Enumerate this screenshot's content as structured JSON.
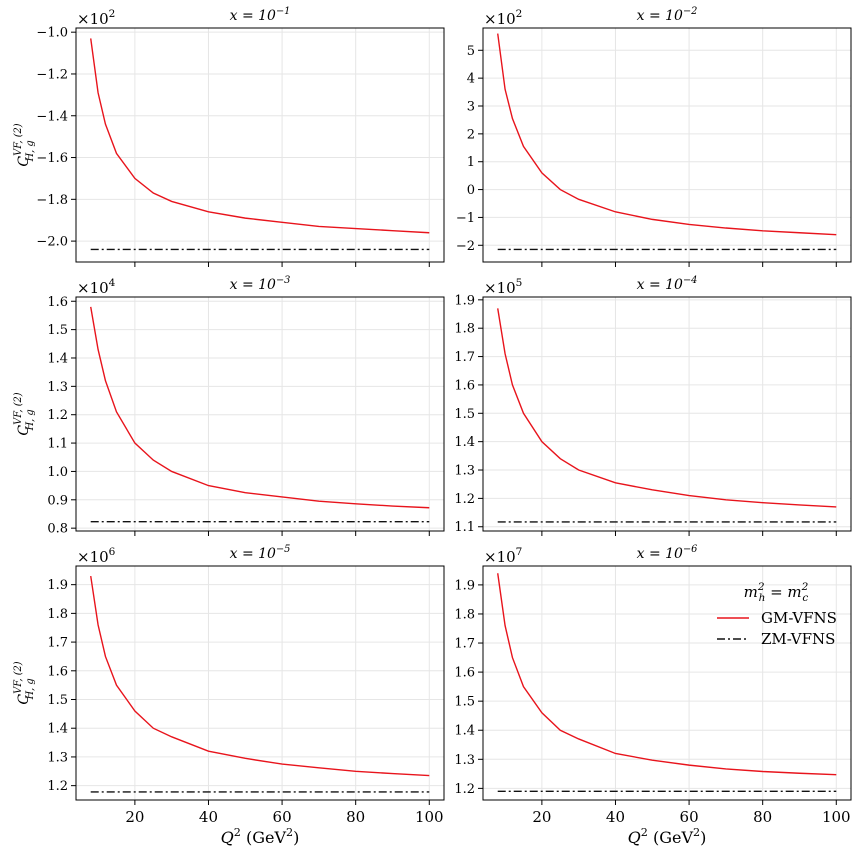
{
  "legend": {
    "title_main": "m",
    "title_sub": "h",
    "title_sup": "2",
    "title_rel": " = m",
    "title_sub2": "c",
    "title_sup2": "2",
    "items": [
      {
        "label": "GM-VFNS",
        "color": "#e8141c",
        "dash": "solid"
      },
      {
        "label": "ZM-VFNS",
        "color": "#111111",
        "dash": "dashdot"
      }
    ]
  },
  "xlabel": {
    "main": "Q",
    "sup": "2",
    "unit_open": " (GeV",
    "unit_sup": "2",
    "unit_close": ")"
  },
  "ylabel": {
    "main": "C",
    "sup": "VF, (2)",
    "sub": "H, g"
  },
  "chart_data": [
    {
      "type": "line",
      "title": {
        "prefix": "x = 10",
        "exp": "−1"
      },
      "multiplier": {
        "base": "×10",
        "exp": "2"
      },
      "xlim": [
        4,
        104
      ],
      "ylim": [
        -2.1,
        -0.98
      ],
      "xticks": [
        20,
        40,
        60,
        80,
        100
      ],
      "yticks": [
        -2.0,
        -1.8,
        -1.6,
        -1.4,
        -1.2,
        -1.0
      ],
      "ytick_labels": [
        "−2.0",
        "−1.8",
        "−1.6",
        "−1.4",
        "−1.2",
        "−1.0"
      ],
      "series": [
        {
          "name": "GM-VFNS",
          "x": [
            8,
            10,
            12,
            15,
            20,
            25,
            30,
            40,
            50,
            60,
            70,
            80,
            90,
            100
          ],
          "values": [
            -1.03,
            -1.29,
            -1.44,
            -1.58,
            -1.7,
            -1.77,
            -1.81,
            -1.86,
            -1.89,
            -1.91,
            -1.93,
            -1.94,
            -1.95,
            -1.96
          ]
        },
        {
          "name": "ZM-VFNS",
          "x": [
            8,
            100
          ],
          "values": [
            -2.04,
            -2.04
          ]
        }
      ],
      "grid": true
    },
    {
      "type": "line",
      "title": {
        "prefix": "x = 10",
        "exp": "−2"
      },
      "multiplier": {
        "base": "×10",
        "exp": "2"
      },
      "xlim": [
        4,
        104
      ],
      "ylim": [
        -2.6,
        5.8
      ],
      "xticks": [
        20,
        40,
        60,
        80,
        100
      ],
      "yticks": [
        -2,
        -1,
        0,
        1,
        2,
        3,
        4,
        5
      ],
      "ytick_labels": [
        "−2",
        "−1",
        "0",
        "1",
        "2",
        "3",
        "4",
        "5"
      ],
      "series": [
        {
          "name": "GM-VFNS",
          "x": [
            8,
            10,
            12,
            15,
            20,
            25,
            30,
            40,
            50,
            60,
            70,
            80,
            90,
            100
          ],
          "values": [
            5.6,
            3.6,
            2.55,
            1.55,
            0.6,
            0.0,
            -0.35,
            -0.8,
            -1.07,
            -1.25,
            -1.38,
            -1.48,
            -1.55,
            -1.62
          ]
        },
        {
          "name": "ZM-VFNS",
          "x": [
            8,
            100
          ],
          "values": [
            -2.15,
            -2.15
          ]
        }
      ],
      "grid": true
    },
    {
      "type": "line",
      "title": {
        "prefix": "x = 10",
        "exp": "−3"
      },
      "multiplier": {
        "base": "×10",
        "exp": "4"
      },
      "xlim": [
        4,
        104
      ],
      "ylim": [
        0.79,
        1.615
      ],
      "xticks": [
        20,
        40,
        60,
        80,
        100
      ],
      "yticks": [
        0.8,
        0.9,
        1.0,
        1.1,
        1.2,
        1.3,
        1.4,
        1.5,
        1.6
      ],
      "ytick_labels": [
        "0.8",
        "0.9",
        "1.0",
        "1.1",
        "1.2",
        "1.3",
        "1.4",
        "1.5",
        "1.6"
      ],
      "series": [
        {
          "name": "GM-VFNS",
          "x": [
            8,
            10,
            12,
            15,
            20,
            25,
            30,
            40,
            50,
            60,
            70,
            80,
            90,
            100
          ],
          "values": [
            1.58,
            1.43,
            1.32,
            1.21,
            1.1,
            1.04,
            1.0,
            0.95,
            0.925,
            0.91,
            0.895,
            0.886,
            0.878,
            0.872
          ]
        },
        {
          "name": "ZM-VFNS",
          "x": [
            8,
            100
          ],
          "values": [
            0.823,
            0.823
          ]
        }
      ],
      "grid": true
    },
    {
      "type": "line",
      "title": {
        "prefix": "x = 10",
        "exp": "−4"
      },
      "multiplier": {
        "base": "×10",
        "exp": "5"
      },
      "xlim": [
        4,
        104
      ],
      "ylim": [
        1.085,
        1.91
      ],
      "xticks": [
        20,
        40,
        60,
        80,
        100
      ],
      "yticks": [
        1.1,
        1.2,
        1.3,
        1.4,
        1.5,
        1.6,
        1.7,
        1.8,
        1.9
      ],
      "ytick_labels": [
        "1.1",
        "1.2",
        "1.3",
        "1.4",
        "1.5",
        "1.6",
        "1.7",
        "1.8",
        "1.9"
      ],
      "series": [
        {
          "name": "GM-VFNS",
          "x": [
            8,
            10,
            12,
            15,
            20,
            25,
            30,
            40,
            50,
            60,
            70,
            80,
            90,
            100
          ],
          "values": [
            1.87,
            1.71,
            1.6,
            1.5,
            1.4,
            1.34,
            1.3,
            1.255,
            1.23,
            1.21,
            1.195,
            1.185,
            1.177,
            1.17
          ]
        },
        {
          "name": "ZM-VFNS",
          "x": [
            8,
            100
          ],
          "values": [
            1.117,
            1.117
          ]
        }
      ],
      "grid": true
    },
    {
      "type": "line",
      "title": {
        "prefix": "x = 10",
        "exp": "−5"
      },
      "multiplier": {
        "base": "×10",
        "exp": "6"
      },
      "xlim": [
        4,
        104
      ],
      "ylim": [
        1.15,
        1.965
      ],
      "xticks": [
        20,
        40,
        60,
        80,
        100
      ],
      "yticks": [
        1.2,
        1.3,
        1.4,
        1.5,
        1.6,
        1.7,
        1.8,
        1.9
      ],
      "ytick_labels": [
        "1.2",
        "1.3",
        "1.4",
        "1.5",
        "1.6",
        "1.7",
        "1.8",
        "1.9"
      ],
      "series": [
        {
          "name": "GM-VFNS",
          "x": [
            8,
            10,
            12,
            15,
            20,
            25,
            30,
            40,
            50,
            60,
            70,
            80,
            90,
            100
          ],
          "values": [
            1.93,
            1.76,
            1.65,
            1.55,
            1.46,
            1.4,
            1.37,
            1.32,
            1.295,
            1.275,
            1.262,
            1.25,
            1.242,
            1.235
          ]
        },
        {
          "name": "ZM-VFNS",
          "x": [
            8,
            100
          ],
          "values": [
            1.178,
            1.178
          ]
        }
      ],
      "grid": true
    },
    {
      "type": "line",
      "title": {
        "prefix": "x = 10",
        "exp": "−6"
      },
      "multiplier": {
        "base": "×10",
        "exp": "7"
      },
      "xlim": [
        4,
        104
      ],
      "ylim": [
        1.16,
        1.965
      ],
      "xticks": [
        20,
        40,
        60,
        80,
        100
      ],
      "yticks": [
        1.2,
        1.3,
        1.4,
        1.5,
        1.6,
        1.7,
        1.8,
        1.9
      ],
      "ytick_labels": [
        "1.2",
        "1.3",
        "1.4",
        "1.5",
        "1.6",
        "1.7",
        "1.8",
        "1.9"
      ],
      "series": [
        {
          "name": "GM-VFNS",
          "x": [
            8,
            10,
            12,
            15,
            20,
            25,
            30,
            40,
            50,
            60,
            70,
            80,
            90,
            100
          ],
          "values": [
            1.94,
            1.76,
            1.65,
            1.55,
            1.46,
            1.4,
            1.37,
            1.32,
            1.297,
            1.28,
            1.267,
            1.258,
            1.252,
            1.247
          ]
        },
        {
          "name": "ZM-VFNS",
          "x": [
            8,
            100
          ],
          "values": [
            1.19,
            1.19
          ]
        }
      ],
      "grid": true
    }
  ]
}
